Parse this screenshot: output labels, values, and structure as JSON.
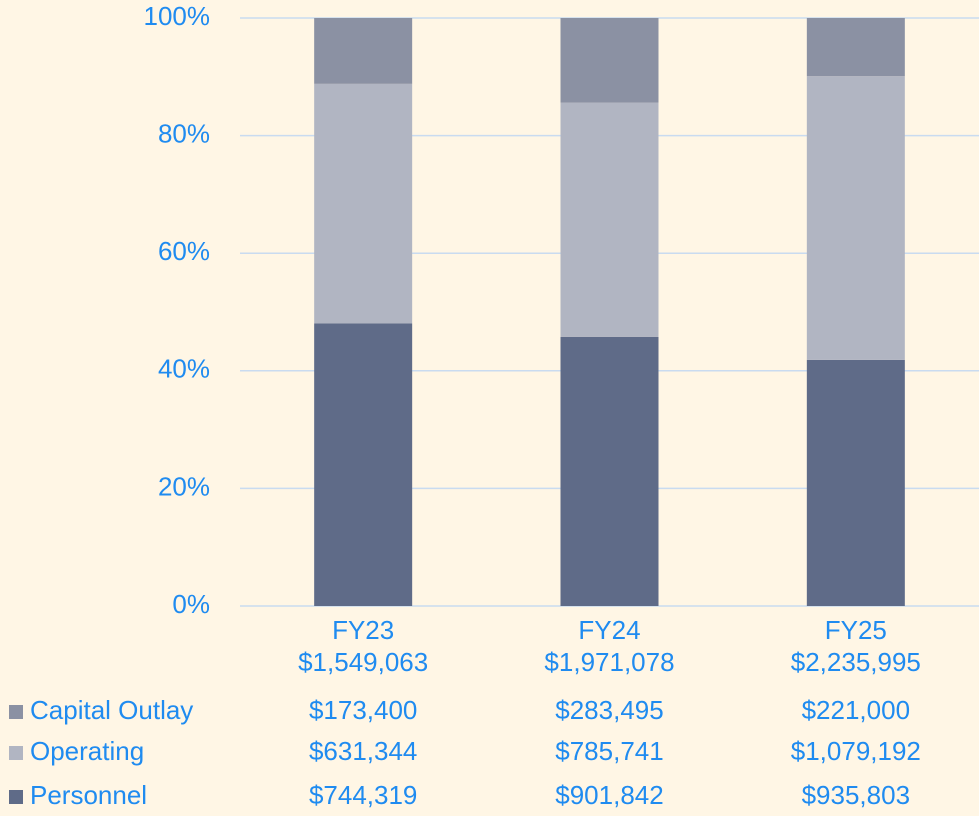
{
  "chart_data": {
    "type": "bar",
    "stacked": "percent",
    "categories": [
      "FY23",
      "FY24",
      "FY25"
    ],
    "totals": [
      {
        "value": 1549063,
        "label": "$1,549,063"
      },
      {
        "value": 1971078,
        "label": "$1,971,078"
      },
      {
        "value": 2235995,
        "label": "$2,235,995"
      }
    ],
    "series": [
      {
        "name": "Capital Outlay",
        "color": "#8b91a3",
        "values": [
          173400,
          283495,
          221000
        ],
        "value_labels": [
          "$173,400",
          "$283,495",
          "$221,000"
        ]
      },
      {
        "name": "Operating",
        "color": "#b1b5c2",
        "values": [
          631344,
          785741,
          1079192
        ],
        "value_labels": [
          "$631,344",
          "$785,741",
          "$1,079,192"
        ]
      },
      {
        "name": "Personnel",
        "color": "#5f6b88",
        "values": [
          744319,
          901842,
          935803
        ],
        "value_labels": [
          "$744,319",
          "$901,842",
          "$935,803"
        ]
      }
    ],
    "ylim": [
      0,
      100
    ],
    "yticks": [
      {
        "value": 0,
        "label": "0%"
      },
      {
        "value": 20,
        "label": "20%"
      },
      {
        "value": 40,
        "label": "40%"
      },
      {
        "value": 60,
        "label": "60%"
      },
      {
        "value": 80,
        "label": "80%"
      },
      {
        "value": 100,
        "label": "100%"
      }
    ],
    "grid": true
  }
}
